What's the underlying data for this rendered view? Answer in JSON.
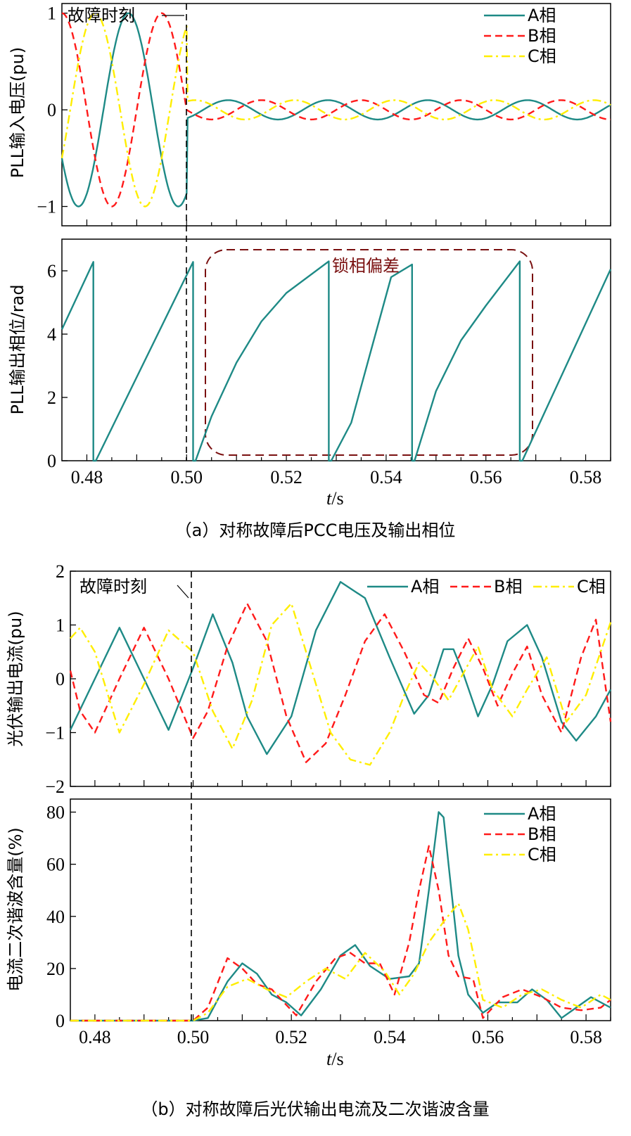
{
  "colors": {
    "A": "#1e8a86",
    "B": "#ff1a1a",
    "C": "#ffee00",
    "phase_bias_box": "#7a1010",
    "axis": "#000000"
  },
  "chart_data": [
    {
      "type": "line",
      "panel": "a-top",
      "ylabel": "PLL输入电压(pu)",
      "xlim": [
        0.475,
        0.585
      ],
      "ylim": [
        -1.2,
        1.1
      ],
      "yticks": [
        "1",
        "0",
        "−1"
      ],
      "annotation": "故障时刻",
      "fault_time": 0.5,
      "legend": "top-right",
      "series": [
        {
          "name": "A相",
          "key": "A",
          "style": "solid",
          "pre_fault_amplitude": 1.0,
          "post_fault_amplitude": 0.1,
          "frequency_hz": 50,
          "phase_deg": -60
        },
        {
          "name": "B相",
          "key": "B",
          "style": "dashed",
          "pre_fault_amplitude": 1.0,
          "post_fault_amplitude": 0.1,
          "frequency_hz": 50,
          "phase_deg": -180
        },
        {
          "name": "C相",
          "key": "C",
          "style": "dashdot",
          "pre_fault_amplitude": 1.0,
          "post_fault_amplitude": 0.1,
          "frequency_hz": 50,
          "phase_deg": 60
        }
      ]
    },
    {
      "type": "line",
      "panel": "a-bottom",
      "ylabel": "PLL输出相位/rad",
      "xlabel_italic": "t",
      "xlabel_unit": "/s",
      "xlim": [
        0.475,
        0.585
      ],
      "ylim": [
        0,
        7
      ],
      "yticks": [
        "6",
        "4",
        "2",
        "0"
      ],
      "xticks": [
        "0.48",
        "0.50",
        "0.52",
        "0.54",
        "0.56",
        "0.58"
      ],
      "annotation": "锁相偏差",
      "series": [
        {
          "key": "A",
          "x": [
            0.475,
            0.4813,
            0.4813,
            0.4818,
            0.5013,
            0.5013,
            0.5018,
            0.505,
            0.51,
            0.515,
            0.52,
            0.5285,
            0.5285,
            0.529,
            0.533,
            0.537,
            0.541,
            0.5452,
            0.5452,
            0.5457,
            0.55,
            0.555,
            0.56,
            0.5668,
            0.5668,
            0.5673,
            0.585
          ],
          "y": [
            4.15,
            6.28,
            0,
            0,
            6.28,
            0,
            0,
            1.4,
            3.1,
            4.4,
            5.3,
            6.3,
            0,
            0,
            1.2,
            3.5,
            5.8,
            6.2,
            0,
            0,
            2.2,
            3.8,
            4.9,
            6.3,
            0,
            0,
            6.05
          ]
        }
      ]
    },
    {
      "type": "line",
      "panel": "b-top",
      "ylabel": "光伏输出电流(pu)",
      "xlim": [
        0.475,
        0.585
      ],
      "ylim": [
        -2,
        2
      ],
      "yticks": [
        "2",
        "1",
        "0",
        "−1",
        "−2"
      ],
      "annotation": "故障时刻",
      "fault_time": 0.5,
      "legend": "top-right",
      "series": [
        {
          "name": "A相",
          "key": "A",
          "style": "solid",
          "x": [
            0.475,
            0.48,
            0.485,
            0.49,
            0.495,
            0.5,
            0.504,
            0.508,
            0.511,
            0.515,
            0.52,
            0.525,
            0.53,
            0.535,
            0.54,
            0.545,
            0.548,
            0.551,
            0.553,
            0.555,
            0.558,
            0.561,
            0.564,
            0.568,
            0.571,
            0.575,
            0.578,
            0.582,
            0.585
          ],
          "y": [
            -0.95,
            0.0,
            0.95,
            0.0,
            -0.95,
            0.2,
            1.2,
            0.3,
            -0.7,
            -1.4,
            -0.7,
            0.9,
            1.8,
            1.5,
            0.4,
            -0.65,
            -0.3,
            0.55,
            0.55,
            0.1,
            -0.7,
            -0.1,
            0.7,
            1.0,
            0.4,
            -0.8,
            -1.15,
            -0.7,
            -0.2
          ]
        },
        {
          "name": "B相",
          "key": "B",
          "style": "dashed",
          "x": [
            0.475,
            0.477,
            0.48,
            0.485,
            0.49,
            0.495,
            0.5,
            0.503,
            0.507,
            0.511,
            0.515,
            0.519,
            0.523,
            0.527,
            0.531,
            0.535,
            0.539,
            0.543,
            0.547,
            0.55,
            0.553,
            0.556,
            0.559,
            0.562,
            0.565,
            0.568,
            0.571,
            0.575,
            0.579,
            0.582,
            0.585
          ],
          "y": [
            0.15,
            -0.6,
            -1.0,
            0.0,
            0.95,
            0.0,
            -1.1,
            -0.6,
            0.6,
            1.4,
            0.7,
            -0.7,
            -1.55,
            -1.2,
            -0.3,
            0.7,
            1.2,
            0.5,
            -0.3,
            -0.45,
            0.2,
            0.75,
            0.2,
            -0.5,
            0.1,
            0.6,
            -0.3,
            -1.0,
            0.4,
            1.1,
            -0.8
          ]
        },
        {
          "name": "C相",
          "key": "C",
          "style": "dashdot",
          "x": [
            0.475,
            0.477,
            0.48,
            0.485,
            0.49,
            0.495,
            0.5,
            0.504,
            0.508,
            0.512,
            0.516,
            0.52,
            0.524,
            0.528,
            0.532,
            0.536,
            0.54,
            0.543,
            0.546,
            0.549,
            0.552,
            0.555,
            0.558,
            0.561,
            0.565,
            0.568,
            0.572,
            0.576,
            0.58,
            0.585
          ],
          "y": [
            0.75,
            0.95,
            0.5,
            -1.0,
            -0.1,
            0.9,
            0.5,
            -0.6,
            -1.3,
            -0.4,
            1.0,
            1.4,
            0.2,
            -1.0,
            -1.5,
            -1.6,
            -1.0,
            -0.3,
            0.3,
            0.0,
            -0.4,
            0.1,
            0.6,
            -0.2,
            -0.7,
            -0.2,
            0.4,
            -0.8,
            -0.3,
            1.05
          ]
        }
      ]
    },
    {
      "type": "line",
      "panel": "b-bottom",
      "ylabel": "电流二次谐波含量(%)",
      "xlabel_italic": "t",
      "xlabel_unit": "/s",
      "xlim": [
        0.475,
        0.585
      ],
      "ylim": [
        0,
        85
      ],
      "yticks": [
        "80",
        "60",
        "40",
        "20",
        "0"
      ],
      "xticks": [
        "0.48",
        "0.50",
        "0.52",
        "0.54",
        "0.56",
        "0.58"
      ],
      "legend": "top-right",
      "series": [
        {
          "name": "A相",
          "key": "A",
          "style": "solid",
          "x": [
            0.475,
            0.5,
            0.503,
            0.507,
            0.51,
            0.513,
            0.516,
            0.519,
            0.522,
            0.526,
            0.53,
            0.533,
            0.536,
            0.54,
            0.544,
            0.546,
            0.548,
            0.55,
            0.551,
            0.552,
            0.554,
            0.556,
            0.559,
            0.562,
            0.566,
            0.569,
            0.572,
            0.575,
            0.578,
            0.581,
            0.585
          ],
          "y": [
            0,
            0,
            1,
            15,
            22,
            18,
            10,
            7,
            2,
            12,
            25,
            29,
            21,
            16,
            17,
            22,
            50,
            80,
            78,
            60,
            25,
            10,
            3,
            7,
            7,
            12,
            8,
            1,
            5,
            9,
            5
          ]
        },
        {
          "name": "B相",
          "key": "B",
          "style": "dashed",
          "x": [
            0.475,
            0.5,
            0.503,
            0.507,
            0.51,
            0.513,
            0.516,
            0.519,
            0.521,
            0.525,
            0.529,
            0.532,
            0.535,
            0.538,
            0.541,
            0.544,
            0.546,
            0.548,
            0.55,
            0.552,
            0.554,
            0.557,
            0.559,
            0.563,
            0.567,
            0.571,
            0.575,
            0.579,
            0.583,
            0.585
          ],
          "y": [
            0,
            0,
            5,
            24,
            20,
            14,
            12,
            6,
            2,
            15,
            24,
            26,
            22,
            22,
            10,
            30,
            50,
            67,
            50,
            25,
            17,
            16,
            1,
            9,
            12,
            9,
            5,
            4,
            5,
            8
          ]
        },
        {
          "name": "C相",
          "key": "C",
          "style": "dashdot",
          "x": [
            0.475,
            0.5,
            0.503,
            0.507,
            0.511,
            0.515,
            0.519,
            0.523,
            0.527,
            0.531,
            0.535,
            0.539,
            0.542,
            0.545,
            0.548,
            0.551,
            0.554,
            0.556,
            0.559,
            0.563,
            0.567,
            0.571,
            0.575,
            0.579,
            0.583,
            0.585
          ],
          "y": [
            0,
            0,
            3,
            13,
            16,
            12,
            9,
            15,
            20,
            16,
            26,
            19,
            10,
            18,
            30,
            38,
            45,
            35,
            8,
            5,
            10,
            12,
            8,
            5,
            10,
            8
          ]
        }
      ]
    }
  ],
  "captions": {
    "a": "（a）对称故障后PCC电压及输出相位",
    "b": "（b）对称故障后光伏输出电流及二次谐波含量"
  }
}
